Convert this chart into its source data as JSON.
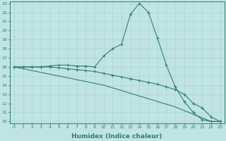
{
  "xlabel": "Humidex (Indice chaleur)",
  "x_values": [
    0,
    1,
    2,
    3,
    4,
    5,
    6,
    7,
    8,
    9,
    10,
    11,
    12,
    13,
    14,
    15,
    16,
    17,
    18,
    19,
    20,
    21,
    22,
    23
  ],
  "line1": [
    16,
    16,
    16,
    16,
    16.1,
    16.2,
    16.2,
    16.1,
    16.1,
    16.0,
    17.2,
    18.0,
    18.5,
    21.8,
    23.0,
    22.0,
    19.2,
    16.2,
    13.8,
    12.2,
    11.0,
    10.2,
    10.0,
    10.0
  ],
  "line2": [
    16,
    16,
    16,
    16,
    16.0,
    15.9,
    15.8,
    15.7,
    15.6,
    15.5,
    15.3,
    15.1,
    14.9,
    14.7,
    14.5,
    14.3,
    14.1,
    13.8,
    13.5,
    13.0,
    12.0,
    11.5,
    10.5,
    10.0
  ],
  "line3": [
    16,
    15.8,
    15.6,
    15.4,
    15.2,
    15.0,
    14.8,
    14.6,
    14.4,
    14.2,
    14.0,
    13.7,
    13.4,
    13.1,
    12.8,
    12.5,
    12.2,
    11.9,
    11.6,
    11.2,
    10.8,
    10.4,
    10.0,
    10.0
  ],
  "color": "#2e7d72",
  "bg_color": "#c0e4e4",
  "grid_color": "#aed4d4",
  "xlim": [
    -0.5,
    23.5
  ],
  "ylim": [
    10,
    23
  ],
  "yticks": [
    10,
    11,
    12,
    13,
    14,
    15,
    16,
    17,
    18,
    19,
    20,
    21,
    22,
    23
  ],
  "xticks": [
    0,
    1,
    2,
    3,
    4,
    5,
    6,
    7,
    8,
    9,
    10,
    11,
    12,
    13,
    14,
    15,
    16,
    17,
    18,
    19,
    20,
    21,
    22,
    23
  ]
}
